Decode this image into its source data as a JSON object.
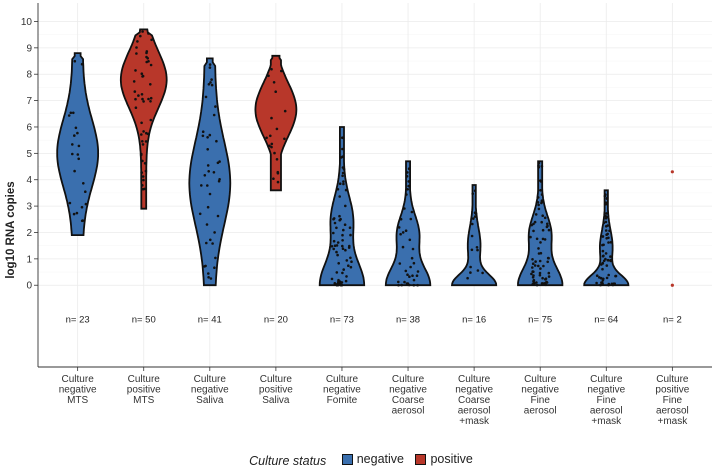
{
  "chart_data": {
    "type": "violin",
    "ylabel": "log10 RNA copies",
    "xlabel": "",
    "ylim": [
      -3.1,
      10.7
    ],
    "yticks": [
      0,
      1,
      2,
      3,
      4,
      5,
      6,
      7,
      8,
      9,
      10
    ],
    "legend": {
      "title": "Culture status",
      "placement": "bottom",
      "entries": [
        {
          "label": "negative",
          "color": "#3a6fae"
        },
        {
          "label": "positive",
          "color": "#b8372a"
        }
      ]
    },
    "groups": [
      {
        "label": [
          "Culture",
          "negative",
          "MTS"
        ],
        "status": "negative",
        "n_label": "n= 23",
        "min": 1.9,
        "max": 8.8,
        "shape": "mid"
      },
      {
        "label": [
          "Culture",
          "positive",
          "MTS"
        ],
        "status": "positive",
        "n_label": "n= 50",
        "min": 2.9,
        "max": 9.7,
        "shape": "high"
      },
      {
        "label": [
          "Culture",
          "negative",
          "Saliva"
        ],
        "status": "negative",
        "n_label": "n= 41",
        "min": 0.0,
        "max": 8.6,
        "shape": "mid"
      },
      {
        "label": [
          "Culture",
          "positive",
          "Saliva"
        ],
        "status": "positive",
        "n_label": "n= 20",
        "min": 3.6,
        "max": 8.7,
        "shape": "highmid"
      },
      {
        "label": [
          "Culture",
          "negative",
          "Fomite"
        ],
        "status": "negative",
        "n_label": "n= 73",
        "min": 0.0,
        "max": 6.0,
        "shape": "bottom"
      },
      {
        "label": [
          "Culture",
          "negative",
          "Coarse",
          "aerosol"
        ],
        "status": "negative",
        "n_label": "n= 38",
        "min": 0.0,
        "max": 4.7,
        "shape": "bottom"
      },
      {
        "label": [
          "Culture",
          "negative",
          "Coarse",
          "aerosol",
          "+mask"
        ],
        "status": "negative",
        "n_label": "n= 16",
        "min": 0.0,
        "max": 3.8,
        "shape": "bottomwide"
      },
      {
        "label": [
          "Culture",
          "negative",
          "Fine",
          "aerosol"
        ],
        "status": "negative",
        "n_label": "n= 75",
        "min": 0.0,
        "max": 4.7,
        "shape": "bottom"
      },
      {
        "label": [
          "Culture",
          "negative",
          "Fine",
          "aerosol",
          "+mask"
        ],
        "status": "negative",
        "n_label": "n= 64",
        "min": 0.0,
        "max": 3.6,
        "shape": "bottomwide"
      },
      {
        "label": [
          "Culture",
          "positive",
          "Fine",
          "aerosol",
          "+mask"
        ],
        "status": "positive",
        "n_label": "n= 2",
        "min": 0.0,
        "max": 4.3,
        "shape": "points",
        "points": [
          4.3,
          0.0
        ]
      }
    ]
  }
}
